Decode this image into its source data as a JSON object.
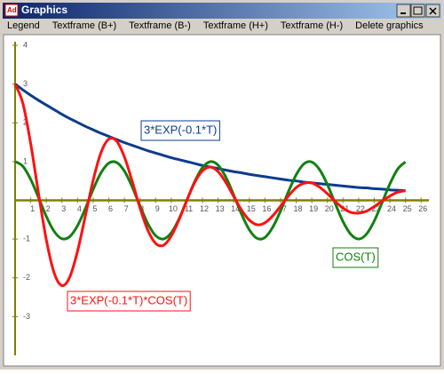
{
  "window": {
    "title": "Graphics"
  },
  "menu": [
    "Legend",
    "Textframe (B+)",
    "Textframe (B-)",
    "Textframe (H+)",
    "Textframe (H-)",
    "Delete graphics"
  ],
  "chart_data": {
    "type": "line",
    "x": [
      0,
      0.5,
      1,
      1.5,
      2,
      2.5,
      3,
      3.5,
      4,
      4.5,
      5,
      5.5,
      6,
      6.5,
      7,
      7.5,
      8,
      8.5,
      9,
      9.5,
      10,
      10.5,
      11,
      11.5,
      12,
      12.5,
      13,
      13.5,
      14,
      14.5,
      15,
      15.5,
      16,
      16.5,
      17,
      17.5,
      18,
      18.5,
      19,
      19.5,
      20,
      20.5,
      21,
      21.5,
      22,
      22.5,
      23,
      23.5,
      24,
      24.5,
      25
    ],
    "series": [
      {
        "name": "3*EXP(-0.1*T)",
        "color": "#0c3c8c",
        "values": [
          3,
          2.85,
          2.71,
          2.58,
          2.46,
          2.34,
          2.22,
          2.11,
          2.01,
          1.91,
          1.82,
          1.73,
          1.65,
          1.57,
          1.49,
          1.42,
          1.35,
          1.28,
          1.22,
          1.16,
          1.1,
          1.05,
          1.0,
          0.95,
          0.9,
          0.86,
          0.82,
          0.78,
          0.74,
          0.71,
          0.67,
          0.64,
          0.61,
          0.58,
          0.55,
          0.52,
          0.5,
          0.47,
          0.45,
          0.43,
          0.41,
          0.39,
          0.37,
          0.35,
          0.33,
          0.32,
          0.3,
          0.29,
          0.27,
          0.26,
          0.25
        ]
      },
      {
        "name": "COS(T)",
        "color": "#118011",
        "values": [
          1,
          0.878,
          0.54,
          0.071,
          -0.416,
          -0.801,
          -0.99,
          -0.936,
          -0.654,
          -0.211,
          0.284,
          0.709,
          0.96,
          0.977,
          0.754,
          0.347,
          -0.146,
          -0.602,
          -0.911,
          -0.997,
          -0.839,
          -0.476,
          0.004,
          0.483,
          0.844,
          0.998,
          0.907,
          0.594,
          0.137,
          -0.355,
          -0.76,
          -0.982,
          -0.958,
          -0.693,
          -0.275,
          0.22,
          0.66,
          0.943,
          0.989,
          0.791,
          0.408,
          -0.081,
          -0.548,
          -0.878,
          -1.0,
          -0.873,
          -0.533,
          -0.062,
          0.424,
          0.806,
          0.991
        ]
      },
      {
        "name": "3*EXP(-0.1*T)*COS(T)",
        "color": "#ff1010",
        "values": [
          3,
          2.5,
          1.46,
          0.18,
          -1.02,
          -1.87,
          -2.2,
          -1.98,
          -1.31,
          -0.4,
          0.52,
          1.23,
          1.58,
          1.53,
          1.12,
          0.49,
          -0.2,
          -0.77,
          -1.11,
          -1.16,
          -0.92,
          -0.5,
          0.0,
          0.46,
          0.76,
          0.86,
          0.74,
          0.46,
          0.1,
          -0.25,
          -0.51,
          -0.63,
          -0.58,
          -0.4,
          -0.15,
          0.11,
          0.33,
          0.44,
          0.45,
          0.34,
          0.17,
          -0.03,
          -0.2,
          -0.31,
          -0.33,
          -0.28,
          -0.16,
          -0.02,
          0.11,
          0.21,
          0.25
        ]
      }
    ],
    "xlim": [
      0,
      26.5
    ],
    "xticks": [
      1,
      2,
      3,
      4,
      5,
      6,
      7,
      8,
      9,
      10,
      11,
      12,
      13,
      14,
      15,
      16,
      17,
      18,
      19,
      20,
      21,
      22,
      23,
      24,
      25,
      26
    ],
    "ylim": [
      -4,
      4
    ],
    "yticks": [
      -3,
      -2,
      -1,
      1,
      2,
      3,
      4
    ],
    "axis_color": "#808000"
  }
}
